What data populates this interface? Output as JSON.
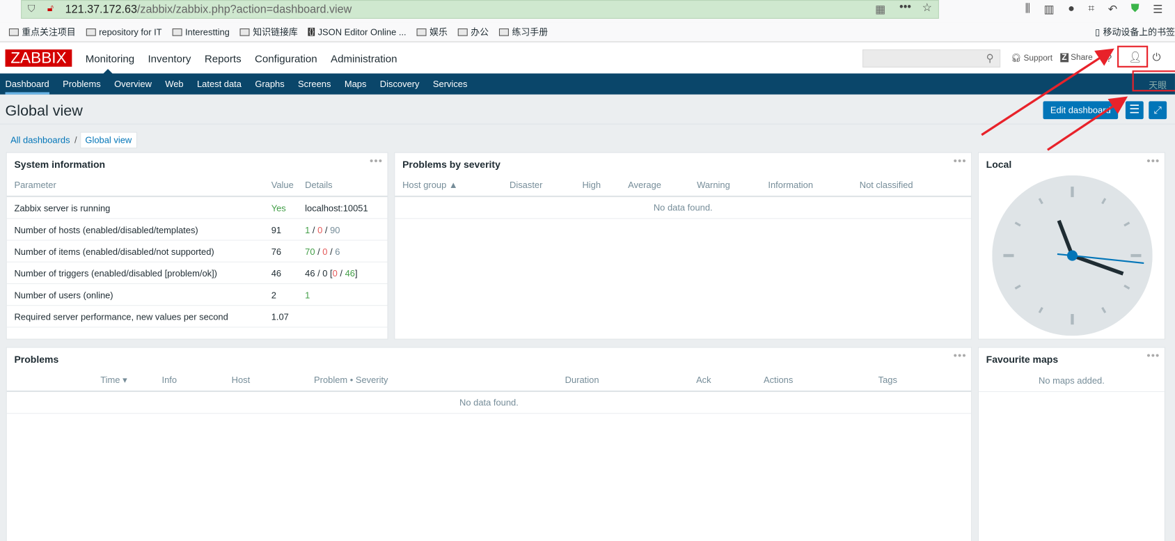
{
  "browser": {
    "url_host": "121.37.172.63",
    "url_path": "/zabbix/zabbix.php?action=dashboard.view",
    "bookmarks": [
      "重点关注项目",
      "repository for IT",
      "Interestting",
      "知识链接库",
      "JSON Editor Online ...",
      "娱乐",
      "办公",
      "练习手册"
    ],
    "mobile_bookmarks": "移动设备上的书签"
  },
  "header": {
    "logo": "ZABBIX",
    "menu": [
      "Monitoring",
      "Inventory",
      "Reports",
      "Configuration",
      "Administration"
    ],
    "search_placeholder": "",
    "support": "Support",
    "share": "Share",
    "help": "?"
  },
  "subnav": {
    "items": [
      "Dashboard",
      "Problems",
      "Overview",
      "Web",
      "Latest data",
      "Graphs",
      "Screens",
      "Maps",
      "Discovery",
      "Services"
    ],
    "user_label": "天眼"
  },
  "page": {
    "title": "Global view",
    "edit_button": "Edit dashboard",
    "breadcrumb": [
      "All dashboards",
      "Global view"
    ]
  },
  "system_info": {
    "title": "System information",
    "headers": [
      "Parameter",
      "Value",
      "Details"
    ],
    "rows": [
      {
        "param": "Zabbix server is running",
        "value": "Yes",
        "details": "localhost:10051"
      },
      {
        "param": "Number of hosts (enabled/disabled/templates)",
        "value": "91",
        "d1": "1",
        "d2": "0",
        "d3": "90"
      },
      {
        "param": "Number of items (enabled/disabled/not supported)",
        "value": "76",
        "d1": "70",
        "d2": "0",
        "d3": "6"
      },
      {
        "param": "Number of triggers (enabled/disabled [problem/ok])",
        "value": "46",
        "dpre": "46 / 0 [",
        "d2": "0",
        "d3": "46",
        "dpost": "]"
      },
      {
        "param": "Number of users (online)",
        "value": "2",
        "d1": "1"
      },
      {
        "param": "Required server performance, new values per second",
        "value": "1.07"
      }
    ]
  },
  "problems_by_severity": {
    "title": "Problems by severity",
    "headers": [
      "Host group ▲",
      "Disaster",
      "High",
      "Average",
      "Warning",
      "Information",
      "Not classified"
    ],
    "empty": "No data found."
  },
  "clock": {
    "title": "Local",
    "time": "11:18:16"
  },
  "problems": {
    "title": "Problems",
    "headers": [
      "Time ▾",
      "Info",
      "Host",
      "Problem • Severity",
      "Duration",
      "Ack",
      "Actions",
      "Tags"
    ],
    "empty": "No data found."
  },
  "fav_maps": {
    "title": "Favourite maps",
    "empty": "No maps added."
  },
  "colors": {
    "brand": "#d40000",
    "nav": "#0a466a",
    "accent": "#0275b8",
    "ok": "#429e47",
    "problem": "#e45959",
    "annotation": "#e8222a"
  }
}
